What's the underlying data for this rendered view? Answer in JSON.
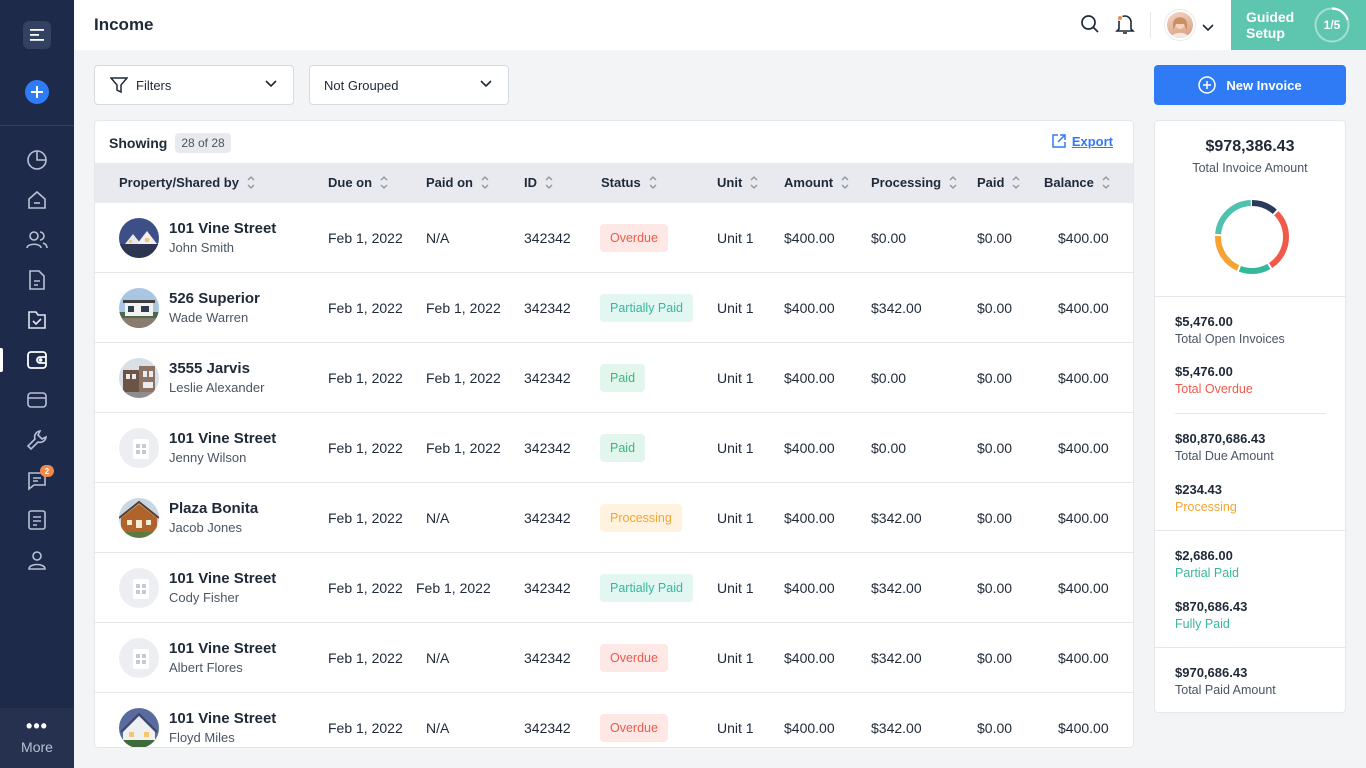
{
  "page": {
    "title": "Income"
  },
  "sidebar": {
    "items": [
      {
        "icon": "chart-pie-icon"
      },
      {
        "icon": "home-icon"
      },
      {
        "icon": "users-icon"
      },
      {
        "icon": "document-icon"
      },
      {
        "icon": "folder-icon"
      },
      {
        "icon": "wallet-icon"
      },
      {
        "icon": "card-icon"
      },
      {
        "icon": "wrench-icon"
      },
      {
        "icon": "chat-icon",
        "badge": "2"
      },
      {
        "icon": "notes-icon"
      },
      {
        "icon": "user-icon"
      }
    ],
    "more_label": "More"
  },
  "topbar": {
    "guided_label": "Guided Setup",
    "guided_step": "1/5"
  },
  "filters": {
    "filters_label": "Filters",
    "group_label": "Not Grouped",
    "new_invoice_label": "New Invoice"
  },
  "table": {
    "showing_label": "Showing",
    "count": "28 of 28",
    "export_label": "Export",
    "columns": [
      "Property/Shared by",
      "Due on",
      "Paid on",
      "ID",
      "Status",
      "Unit",
      "Amount",
      "Processing",
      "Paid",
      "Balance"
    ],
    "rows": [
      {
        "property": "101 Vine Street",
        "person": "John Smith",
        "due": "Feb 1, 2022",
        "paid_on": "N/A",
        "id": "342342",
        "status": "Overdue",
        "unit": "Unit 1",
        "amount": "$400.00",
        "processing": "$0.00",
        "paid": "$0.00",
        "balance": "$400.00"
      },
      {
        "property": "526 Superior",
        "person": "Wade Warren",
        "due": "Feb 1, 2022",
        "paid_on": "Feb 1, 2022",
        "id": "342342",
        "status": "Partially Paid",
        "unit": "Unit 1",
        "amount": "$400.00",
        "processing": "$342.00",
        "paid": "$0.00",
        "balance": "$400.00"
      },
      {
        "property": "3555 Jarvis",
        "person": "Leslie Alexander",
        "due": "Feb 1, 2022",
        "paid_on": "Feb 1, 2022",
        "id": "342342",
        "status": "Paid",
        "unit": "Unit 1",
        "amount": "$400.00",
        "processing": "$0.00",
        "paid": "$0.00",
        "balance": "$400.00"
      },
      {
        "property": "101 Vine Street",
        "person": "Jenny Wilson",
        "due": "Feb 1, 2022",
        "paid_on": "Feb 1, 2022",
        "id": "342342",
        "status": "Paid",
        "unit": "Unit 1",
        "amount": "$400.00",
        "processing": "$0.00",
        "paid": "$0.00",
        "balance": "$400.00"
      },
      {
        "property": "Plaza Bonita",
        "person": "Jacob Jones",
        "due": "Feb 1, 2022",
        "paid_on": "N/A",
        "id": "342342",
        "status": "Processing",
        "unit": "Unit 1",
        "amount": "$400.00",
        "processing": "$342.00",
        "paid": "$0.00",
        "balance": "$400.00"
      },
      {
        "property": "101 Vine Street",
        "person": "Cody Fisher",
        "due": "Feb 1, 2022",
        "paid_on": "Feb 1, 2022",
        "id": "342342",
        "status": "Partially Paid",
        "unit": "Unit 1",
        "amount": "$400.00",
        "processing": "$342.00",
        "paid": "$0.00",
        "balance": "$400.00"
      },
      {
        "property": "101 Vine Street",
        "person": "Albert Flores",
        "due": "Feb 1, 2022",
        "paid_on": "N/A",
        "id": "342342",
        "status": "Overdue",
        "unit": "Unit 1",
        "amount": "$400.00",
        "processing": "$342.00",
        "paid": "$0.00",
        "balance": "$400.00"
      },
      {
        "property": "101 Vine Street",
        "person": "Floyd Miles",
        "due": "Feb 1, 2022",
        "paid_on": "N/A",
        "id": "342342",
        "status": "Overdue",
        "unit": "Unit 1",
        "amount": "$400.00",
        "processing": "$342.00",
        "paid": "$0.00",
        "balance": "$400.00"
      }
    ]
  },
  "summary": {
    "total": "$978,386.43",
    "total_label": "Total Invoice Amount",
    "open_invoices": "$5,476.00",
    "open_invoices_label": "Total Open Invoices",
    "overdue": "$5,476.00",
    "overdue_label": "Total Overdue",
    "due": "$80,870,686.43",
    "due_label": "Total Due Amount",
    "processing": "$234.43",
    "processing_label": "Processing",
    "partial": "$2,686.00",
    "partial_label": "Partial Paid",
    "fully": "$870,686.43",
    "fully_label": "Fully Paid",
    "total_paid": "$970,686.43",
    "total_paid_label": "Total Paid Amount"
  },
  "colors": {
    "sidebar": "#1e2a4a",
    "accent": "#2f7bf5",
    "guided": "#5ec5ae",
    "overdue": "#ef5a4b",
    "partial": "#36b89c",
    "processing": "#f5a431",
    "navy": "#2b3a5c"
  }
}
